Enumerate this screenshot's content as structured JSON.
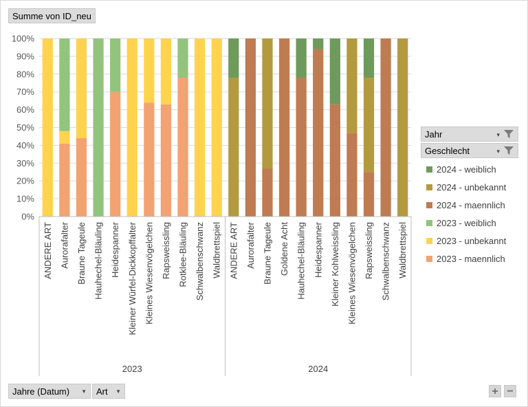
{
  "field_buttons": {
    "value_field": "Summe von ID_neu",
    "filter_jahr": "Jahr",
    "filter_geschlecht": "Geschlecht",
    "axis_jahre": "Jahre (Datum)",
    "axis_art": "Art",
    "dropdown_glyph": "▼",
    "filter_dropdown_glyph": "▾"
  },
  "zoom": {
    "plus": "+",
    "minus": "−"
  },
  "chart_data": {
    "type": "bar",
    "stacked": "percent",
    "yticks": [
      "0%",
      "10%",
      "20%",
      "30%",
      "40%",
      "50%",
      "60%",
      "70%",
      "80%",
      "90%",
      "100%"
    ],
    "ylim": [
      0,
      100
    ],
    "legend_position": "right",
    "legend": [
      {
        "name": "2024 - weiblich",
        "color": "#6e9a5c"
      },
      {
        "name": "2024 - unbekannt",
        "color": "#b39a3e"
      },
      {
        "name": "2024 - maennlich",
        "color": "#bf7b51"
      },
      {
        "name": "2023 - weiblich",
        "color": "#93c47d"
      },
      {
        "name": "2023 - unbekannt",
        "color": "#ffd34d"
      },
      {
        "name": "2023 - maennlich",
        "color": "#f3a272"
      }
    ],
    "groups": [
      {
        "label": "2023",
        "categories": [
          {
            "name": "ANDERE ART",
            "segments": [
              {
                "series": "2023 - maennlich",
                "value": 0
              },
              {
                "series": "2023 - unbekannt",
                "value": 100
              },
              {
                "series": "2023 - weiblich",
                "value": 0
              }
            ]
          },
          {
            "name": "Aurorafalter",
            "segments": [
              {
                "series": "2023 - maennlich",
                "value": 41
              },
              {
                "series": "2023 - unbekannt",
                "value": 7
              },
              {
                "series": "2023 - weiblich",
                "value": 52
              }
            ]
          },
          {
            "name": "Braune Tageule",
            "segments": [
              {
                "series": "2023 - maennlich",
                "value": 44
              },
              {
                "series": "2023 - unbekannt",
                "value": 56
              },
              {
                "series": "2023 - weiblich",
                "value": 0
              }
            ]
          },
          {
            "name": "Hauhechel-Bläuling",
            "segments": [
              {
                "series": "2023 - maennlich",
                "value": 0
              },
              {
                "series": "2023 - unbekannt",
                "value": 0
              },
              {
                "series": "2023 - weiblich",
                "value": 100
              }
            ]
          },
          {
            "name": "Heidespanner",
            "segments": [
              {
                "series": "2023 - maennlich",
                "value": 70
              },
              {
                "series": "2023 - unbekannt",
                "value": 0
              },
              {
                "series": "2023 - weiblich",
                "value": 30
              }
            ]
          },
          {
            "name": "Kleiner Würfel-Dickkopffalter",
            "segments": [
              {
                "series": "2023 - maennlich",
                "value": 0
              },
              {
                "series": "2023 - unbekannt",
                "value": 100
              },
              {
                "series": "2023 - weiblich",
                "value": 0
              }
            ]
          },
          {
            "name": "Kleines Wiesenvögelchen",
            "segments": [
              {
                "series": "2023 - maennlich",
                "value": 64
              },
              {
                "series": "2023 - unbekannt",
                "value": 36
              },
              {
                "series": "2023 - weiblich",
                "value": 0
              }
            ]
          },
          {
            "name": "Rapsweissling",
            "segments": [
              {
                "series": "2023 - maennlich",
                "value": 63
              },
              {
                "series": "2023 - unbekannt",
                "value": 37
              },
              {
                "series": "2023 - weiblich",
                "value": 0
              }
            ]
          },
          {
            "name": "Rotklee-Bläuling",
            "segments": [
              {
                "series": "2023 - maennlich",
                "value": 78
              },
              {
                "series": "2023 - unbekannt",
                "value": 0
              },
              {
                "series": "2023 - weiblich",
                "value": 22
              }
            ]
          },
          {
            "name": "Schwalbenschwanz",
            "segments": [
              {
                "series": "2023 - maennlich",
                "value": 0
              },
              {
                "series": "2023 - unbekannt",
                "value": 100
              },
              {
                "series": "2023 - weiblich",
                "value": 0
              }
            ]
          },
          {
            "name": "Waldbrettspiel",
            "segments": [
              {
                "series": "2023 - maennlich",
                "value": 0
              },
              {
                "series": "2023 - unbekannt",
                "value": 100
              },
              {
                "series": "2023 - weiblich",
                "value": 0
              }
            ]
          }
        ]
      },
      {
        "label": "2024",
        "categories": [
          {
            "name": "ANDERE ART",
            "segments": [
              {
                "series": "2024 - maennlich",
                "value": 0
              },
              {
                "series": "2024 - unbekannt",
                "value": 78
              },
              {
                "series": "2024 - weiblich",
                "value": 22
              }
            ]
          },
          {
            "name": "Aurorafalter",
            "segments": [
              {
                "series": "2024 - maennlich",
                "value": 100
              },
              {
                "series": "2024 - unbekannt",
                "value": 0
              },
              {
                "series": "2024 - weiblich",
                "value": 0
              }
            ]
          },
          {
            "name": "Braune Tageule",
            "segments": [
              {
                "series": "2024 - maennlich",
                "value": 27
              },
              {
                "series": "2024 - unbekannt",
                "value": 73
              },
              {
                "series": "2024 - weiblich",
                "value": 0
              }
            ]
          },
          {
            "name": "Goldene Acht",
            "segments": [
              {
                "series": "2024 - maennlich",
                "value": 100
              },
              {
                "series": "2024 - unbekannt",
                "value": 0
              },
              {
                "series": "2024 - weiblich",
                "value": 0
              }
            ]
          },
          {
            "name": "Hauhechel-Bläuling",
            "segments": [
              {
                "series": "2024 - maennlich",
                "value": 78
              },
              {
                "series": "2024 - unbekannt",
                "value": 0
              },
              {
                "series": "2024 - weiblich",
                "value": 22
              }
            ]
          },
          {
            "name": "Heidespanner",
            "segments": [
              {
                "series": "2024 - maennlich",
                "value": 94
              },
              {
                "series": "2024 - unbekannt",
                "value": 0
              },
              {
                "series": "2024 - weiblich",
                "value": 6
              }
            ]
          },
          {
            "name": "Kleiner Kohlweissling",
            "segments": [
              {
                "series": "2024 - maennlich",
                "value": 63
              },
              {
                "series": "2024 - unbekannt",
                "value": 0
              },
              {
                "series": "2024 - weiblich",
                "value": 37
              }
            ]
          },
          {
            "name": "Kleines Wiesenvögelchen",
            "segments": [
              {
                "series": "2024 - maennlich",
                "value": 47
              },
              {
                "series": "2024 - unbekannt",
                "value": 53
              },
              {
                "series": "2024 - weiblich",
                "value": 0
              }
            ]
          },
          {
            "name": "Rapsweissling",
            "segments": [
              {
                "series": "2024 - maennlich",
                "value": 25
              },
              {
                "series": "2024 - unbekannt",
                "value": 53
              },
              {
                "series": "2024 - weiblich",
                "value": 22
              }
            ]
          },
          {
            "name": "Schwalbenschwanz",
            "segments": [
              {
                "series": "2024 - maennlich",
                "value": 100
              },
              {
                "series": "2024 - unbekannt",
                "value": 0
              },
              {
                "series": "2024 - weiblich",
                "value": 0
              }
            ]
          },
          {
            "name": "Waldbrettspiel",
            "segments": [
              {
                "series": "2024 - maennlich",
                "value": 0
              },
              {
                "series": "2024 - unbekannt",
                "value": 100
              },
              {
                "series": "2024 - weiblich",
                "value": 0
              }
            ]
          }
        ]
      }
    ]
  }
}
